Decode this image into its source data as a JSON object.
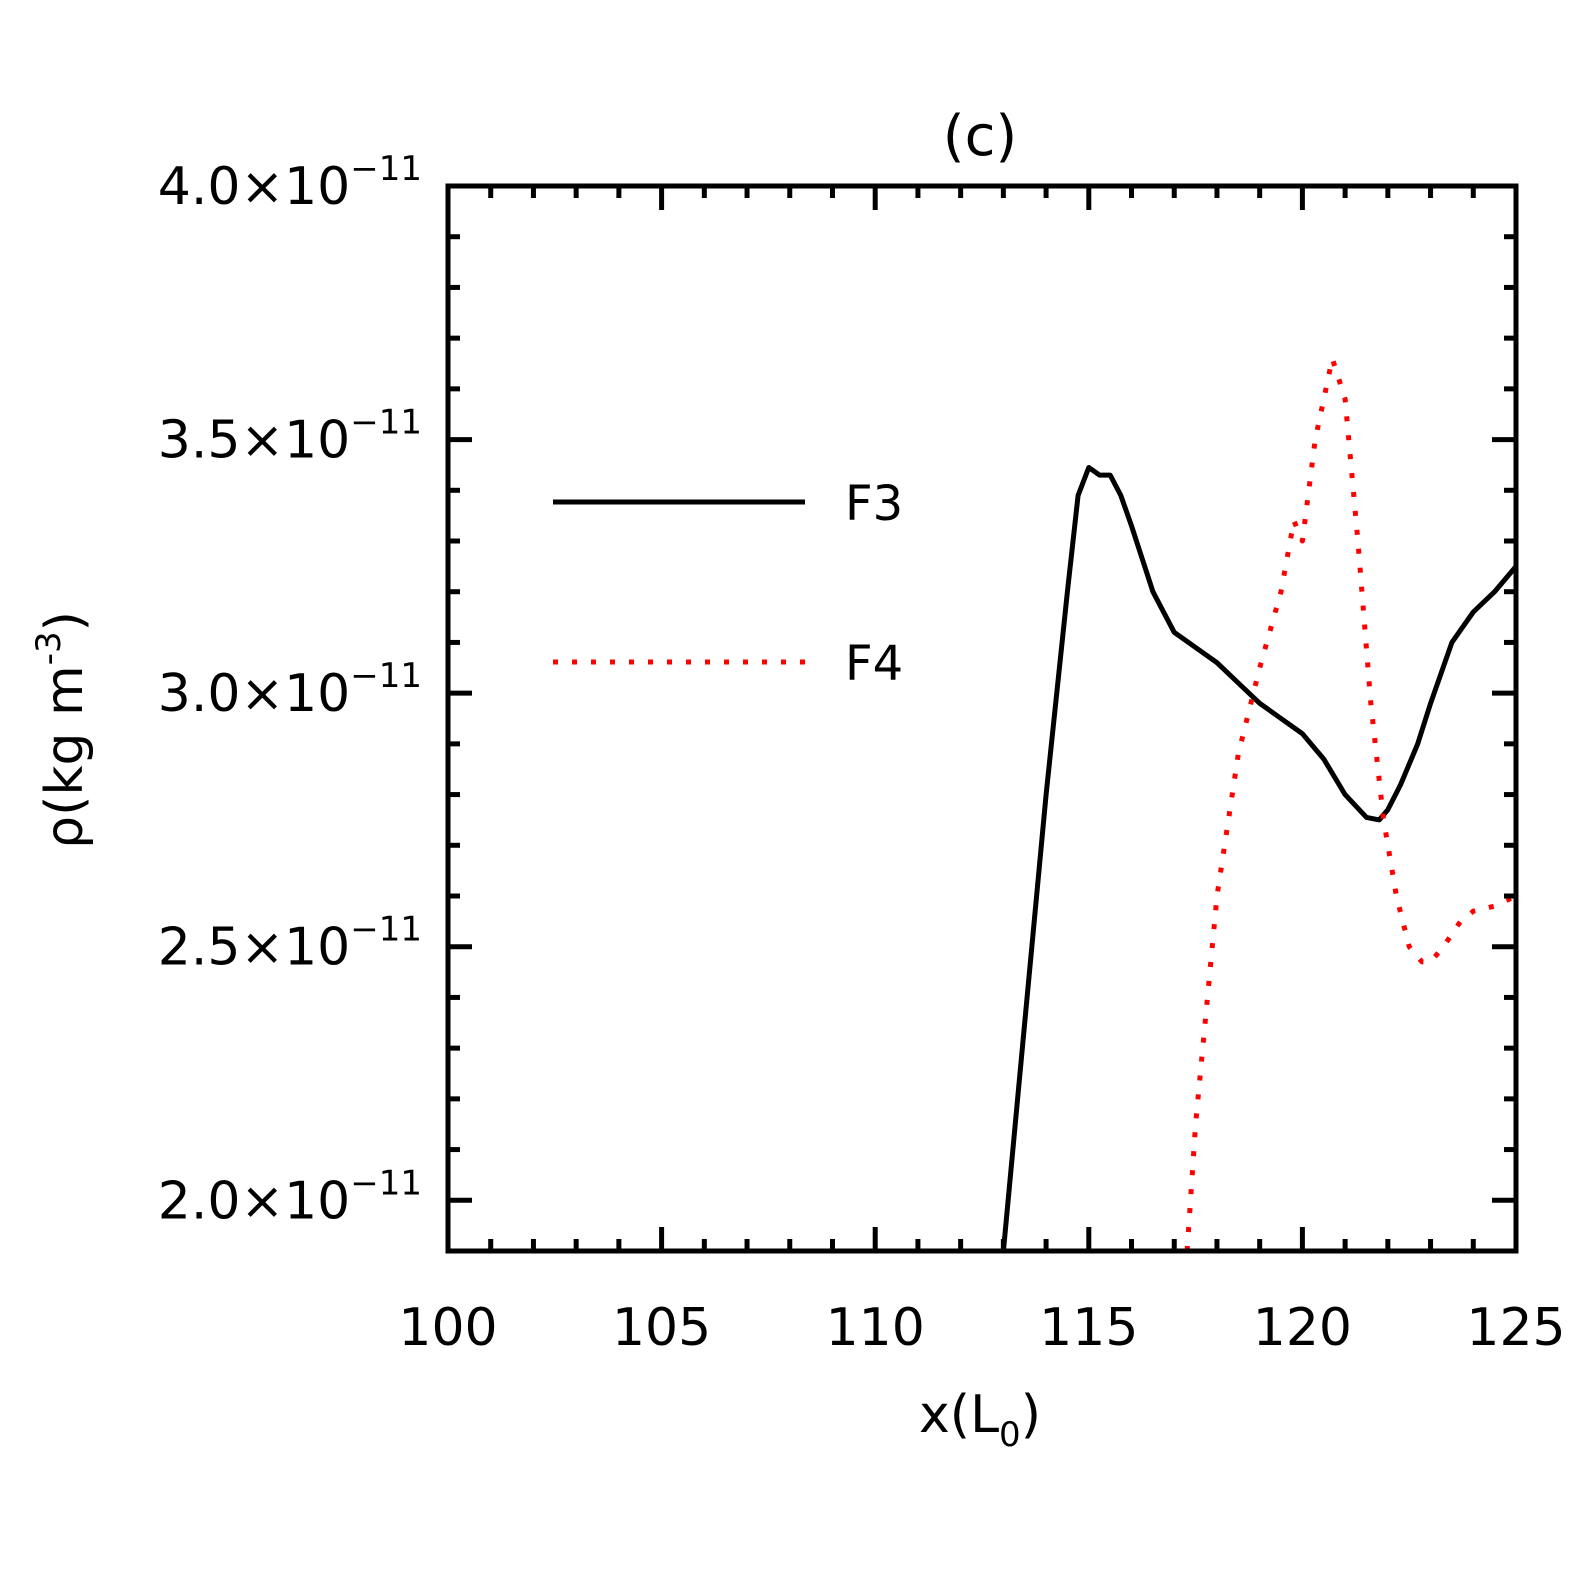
{
  "chart_data": {
    "type": "line",
    "title": "(c)",
    "xlabel": "x(L",
    "xlabel_sub": "0",
    "xlabel_close": ")",
    "ylabel": "ρ(kg m",
    "ylabel_sup": "-3",
    "ylabel_close": ")",
    "xlim": [
      100,
      125
    ],
    "ylim": [
      1.9e-11,
      4e-11
    ],
    "x_ticks": [
      100,
      105,
      110,
      115,
      120,
      125
    ],
    "x_tick_labels": [
      "100",
      "105",
      "110",
      "115",
      "120",
      "125"
    ],
    "x_minor_step": 1,
    "y_ticks": [
      2e-11,
      2.5e-11,
      3e-11,
      3.5e-11,
      4e-11
    ],
    "y_tick_labels": [
      {
        "mantissa": "2.0×10",
        "exponent": "−11"
      },
      {
        "mantissa": "2.5×10",
        "exponent": "−11"
      },
      {
        "mantissa": "3.0×10",
        "exponent": "−11"
      },
      {
        "mantissa": "3.5×10",
        "exponent": "−11"
      },
      {
        "mantissa": "4.0×10",
        "exponent": "−11"
      }
    ],
    "y_minor_step": 1e-12,
    "legend_position": "upper-left",
    "series": [
      {
        "name": "F3",
        "style": "solid",
        "color": "#000000",
        "x": [
          113.0,
          113.5,
          114.0,
          114.5,
          114.75,
          115.0,
          115.25,
          115.5,
          115.75,
          116.0,
          116.5,
          117.0,
          117.5,
          118.0,
          118.5,
          119.0,
          119.5,
          120.0,
          120.5,
          121.0,
          121.5,
          121.8,
          122.0,
          122.3,
          122.7,
          123.0,
          123.5,
          124.0,
          124.5,
          125.0
        ],
        "y": [
          1.9e-11,
          2.35e-11,
          2.8e-11,
          3.2e-11,
          3.39e-11,
          3.445e-11,
          3.43e-11,
          3.43e-11,
          3.39e-11,
          3.33e-11,
          3.2e-11,
          3.12e-11,
          3.09e-11,
          3.06e-11,
          3.02e-11,
          2.98e-11,
          2.95e-11,
          2.92e-11,
          2.87e-11,
          2.8e-11,
          2.755e-11,
          2.75e-11,
          2.77e-11,
          2.82e-11,
          2.9e-11,
          2.98e-11,
          3.1e-11,
          3.16e-11,
          3.2e-11,
          3.25e-11
        ]
      },
      {
        "name": "F4",
        "style": "dotted",
        "color": "#ff0000",
        "x": [
          117.3,
          117.5,
          118.0,
          118.5,
          119.0,
          119.5,
          119.8,
          120.0,
          120.3,
          120.5,
          120.7,
          121.0,
          121.3,
          121.6,
          121.9,
          122.2,
          122.5,
          122.8,
          123.0,
          123.3,
          123.7,
          124.0,
          124.5,
          125.0
        ],
        "y": [
          1.9e-11,
          2.15e-11,
          2.6e-11,
          2.88e-11,
          3.05e-11,
          3.2e-11,
          3.34e-11,
          3.3e-11,
          3.5e-11,
          3.58e-11,
          3.66e-11,
          3.58e-11,
          3.3e-11,
          2.98e-11,
          2.75e-11,
          2.6e-11,
          2.5e-11,
          2.47e-11,
          2.47e-11,
          2.5e-11,
          2.55e-11,
          2.57e-11,
          2.58e-11,
          2.6e-11
        ]
      }
    ]
  }
}
